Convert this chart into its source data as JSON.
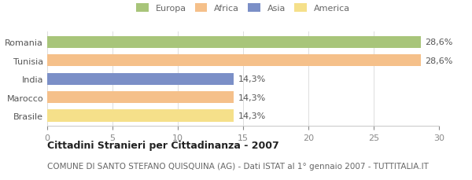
{
  "categories": [
    "Romania",
    "Tunisia",
    "India",
    "Marocco",
    "Brasile"
  ],
  "values": [
    28.6,
    28.6,
    14.3,
    14.3,
    14.3
  ],
  "labels": [
    "28,6%",
    "28,6%",
    "14,3%",
    "14,3%",
    "14,3%"
  ],
  "bar_colors": [
    "#a8c57a",
    "#f5c08a",
    "#7b8fc7",
    "#f5c08a",
    "#f5e08a"
  ],
  "legend_items": [
    {
      "label": "Europa",
      "color": "#a8c57a"
    },
    {
      "label": "Africa",
      "color": "#f5c08a"
    },
    {
      "label": "Asia",
      "color": "#7b8fc7"
    },
    {
      "label": "America",
      "color": "#f5e08a"
    }
  ],
  "xlim": [
    0,
    30
  ],
  "xticks": [
    0,
    5,
    10,
    15,
    20,
    25,
    30
  ],
  "title": "Cittadini Stranieri per Cittadinanza - 2007",
  "subtitle": "COMUNE DI SANTO STEFANO QUISQUINA (AG) - Dati ISTAT al 1° gennaio 2007 - TUTTITALIA.IT",
  "title_fontsize": 9,
  "subtitle_fontsize": 7.5,
  "label_fontsize": 8,
  "tick_fontsize": 8,
  "background_color": "#ffffff",
  "bar_height": 0.65
}
